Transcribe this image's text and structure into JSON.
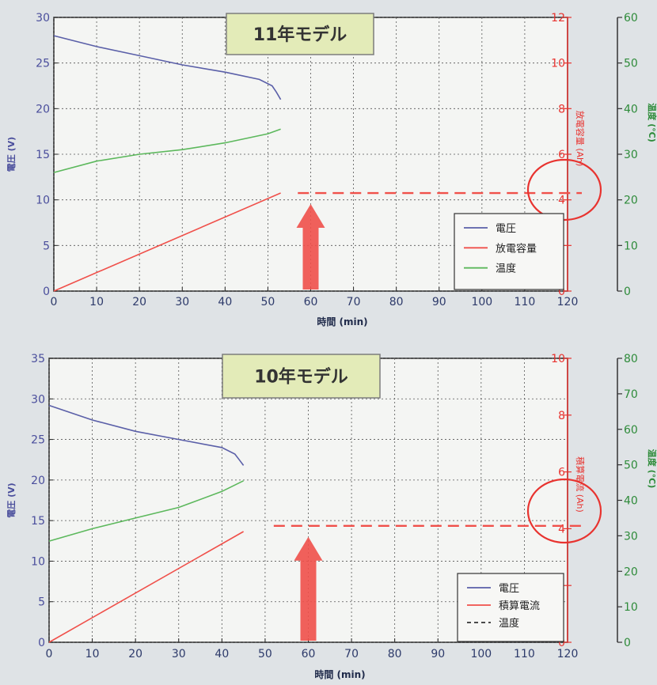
{
  "chart_data": [
    {
      "type": "line",
      "title": "11年モデル",
      "xlabel": "時間 (min)",
      "ylabel_left": "電圧 (V)",
      "ylabel_right": "放電容量 (Ah)",
      "ylabel_right2": "温度 (°C)",
      "xlim": [
        0,
        120
      ],
      "xticks": [
        "0",
        "10",
        "20",
        "30",
        "40",
        "50",
        "60",
        "70",
        "80",
        "90",
        "100",
        "110",
        "120"
      ],
      "ylim_left": [
        0,
        30
      ],
      "yticks_left": [
        "0",
        "5",
        "10",
        "15",
        "20",
        "25",
        "30"
      ],
      "ylim_right": [
        0,
        12
      ],
      "yticks_right": [
        "0",
        "2",
        "4",
        "6",
        "8",
        "10",
        "12"
      ],
      "ylim_right2": [
        0,
        60
      ],
      "yticks_right2": [
        "0",
        "10",
        "20",
        "30",
        "40",
        "50",
        "60"
      ],
      "grid": true,
      "legend_position": "lower-right",
      "series": [
        {
          "name": "電圧",
          "axis": "left",
          "color": "#5a5fa8",
          "x": [
            0,
            5,
            10,
            20,
            30,
            40,
            48,
            51,
            52,
            53
          ],
          "y": [
            28.0,
            27.4,
            26.8,
            25.8,
            24.8,
            24.0,
            23.2,
            22.5,
            21.8,
            21.0
          ]
        },
        {
          "name": "放電容量",
          "axis": "right",
          "color": "#f0504a",
          "x": [
            0,
            53
          ],
          "y": [
            0,
            4.3
          ]
        },
        {
          "name": "温度",
          "axis": "right2",
          "color": "#5cb85c",
          "x": [
            0,
            10,
            20,
            30,
            40,
            50,
            53
          ],
          "y": [
            26,
            28.5,
            30,
            31,
            32.5,
            34.5,
            35.5
          ]
        }
      ],
      "reference_line": {
        "axis": "right",
        "value": 4.3,
        "x_start": 57,
        "x_end": 120,
        "style": "dashed",
        "color": "#f0504a"
      },
      "arrow": {
        "x": 60,
        "color": "#f0504a"
      },
      "circle": {
        "color": "#e8332f"
      }
    },
    {
      "type": "line",
      "title": "10年モデル",
      "xlabel": "時間 (min)",
      "ylabel_left": "電圧 (V)",
      "ylabel_right": "積算電流 (Ah)",
      "ylabel_right2": "温度 (°C)",
      "xlim": [
        0,
        120
      ],
      "xticks": [
        "0",
        "10",
        "20",
        "30",
        "40",
        "50",
        "60",
        "70",
        "80",
        "90",
        "100",
        "110",
        "120"
      ],
      "ylim_left": [
        0,
        35
      ],
      "yticks_left": [
        "0",
        "5",
        "10",
        "15",
        "20",
        "25",
        "30",
        "35"
      ],
      "ylim_right": [
        0,
        10
      ],
      "yticks_right": [
        "0",
        "2",
        "4",
        "6",
        "8",
        "10"
      ],
      "ylim_right2": [
        0,
        80
      ],
      "yticks_right2": [
        "0",
        "10",
        "20",
        "30",
        "40",
        "50",
        "60",
        "70",
        "80"
      ],
      "grid": true,
      "legend_position": "lower-right",
      "series": [
        {
          "name": "電圧",
          "axis": "left",
          "color": "#5a5fa8",
          "x": [
            0,
            5,
            10,
            20,
            30,
            40,
            43,
            44,
            45
          ],
          "y": [
            29.2,
            28.3,
            27.4,
            26.0,
            25.0,
            24.0,
            23.2,
            22.5,
            21.8
          ]
        },
        {
          "name": "積算電流",
          "axis": "right",
          "color": "#f0504a",
          "x": [
            0,
            45
          ],
          "y": [
            0,
            3.9
          ]
        },
        {
          "name": "温度",
          "axis": "right2",
          "color": "#5cb85c",
          "x": [
            0,
            10,
            20,
            30,
            40,
            45
          ],
          "y": [
            28.5,
            32,
            35,
            38,
            42.5,
            45.5
          ]
        }
      ],
      "reference_line": {
        "axis": "right",
        "value": 4.1,
        "x_start": 52,
        "x_end": 120,
        "style": "dashed",
        "color": "#f0504a"
      },
      "arrow": {
        "x": 60,
        "color": "#f0504a"
      },
      "circle": {
        "color": "#e8332f"
      }
    }
  ],
  "colors": {
    "left_axis": "#4a4e9c",
    "right_axis": "#e8332f",
    "right2_axis": "#2e8b3a",
    "title_box_bg": "#e3ebb8",
    "title_box_border": "#7c7c7c"
  }
}
